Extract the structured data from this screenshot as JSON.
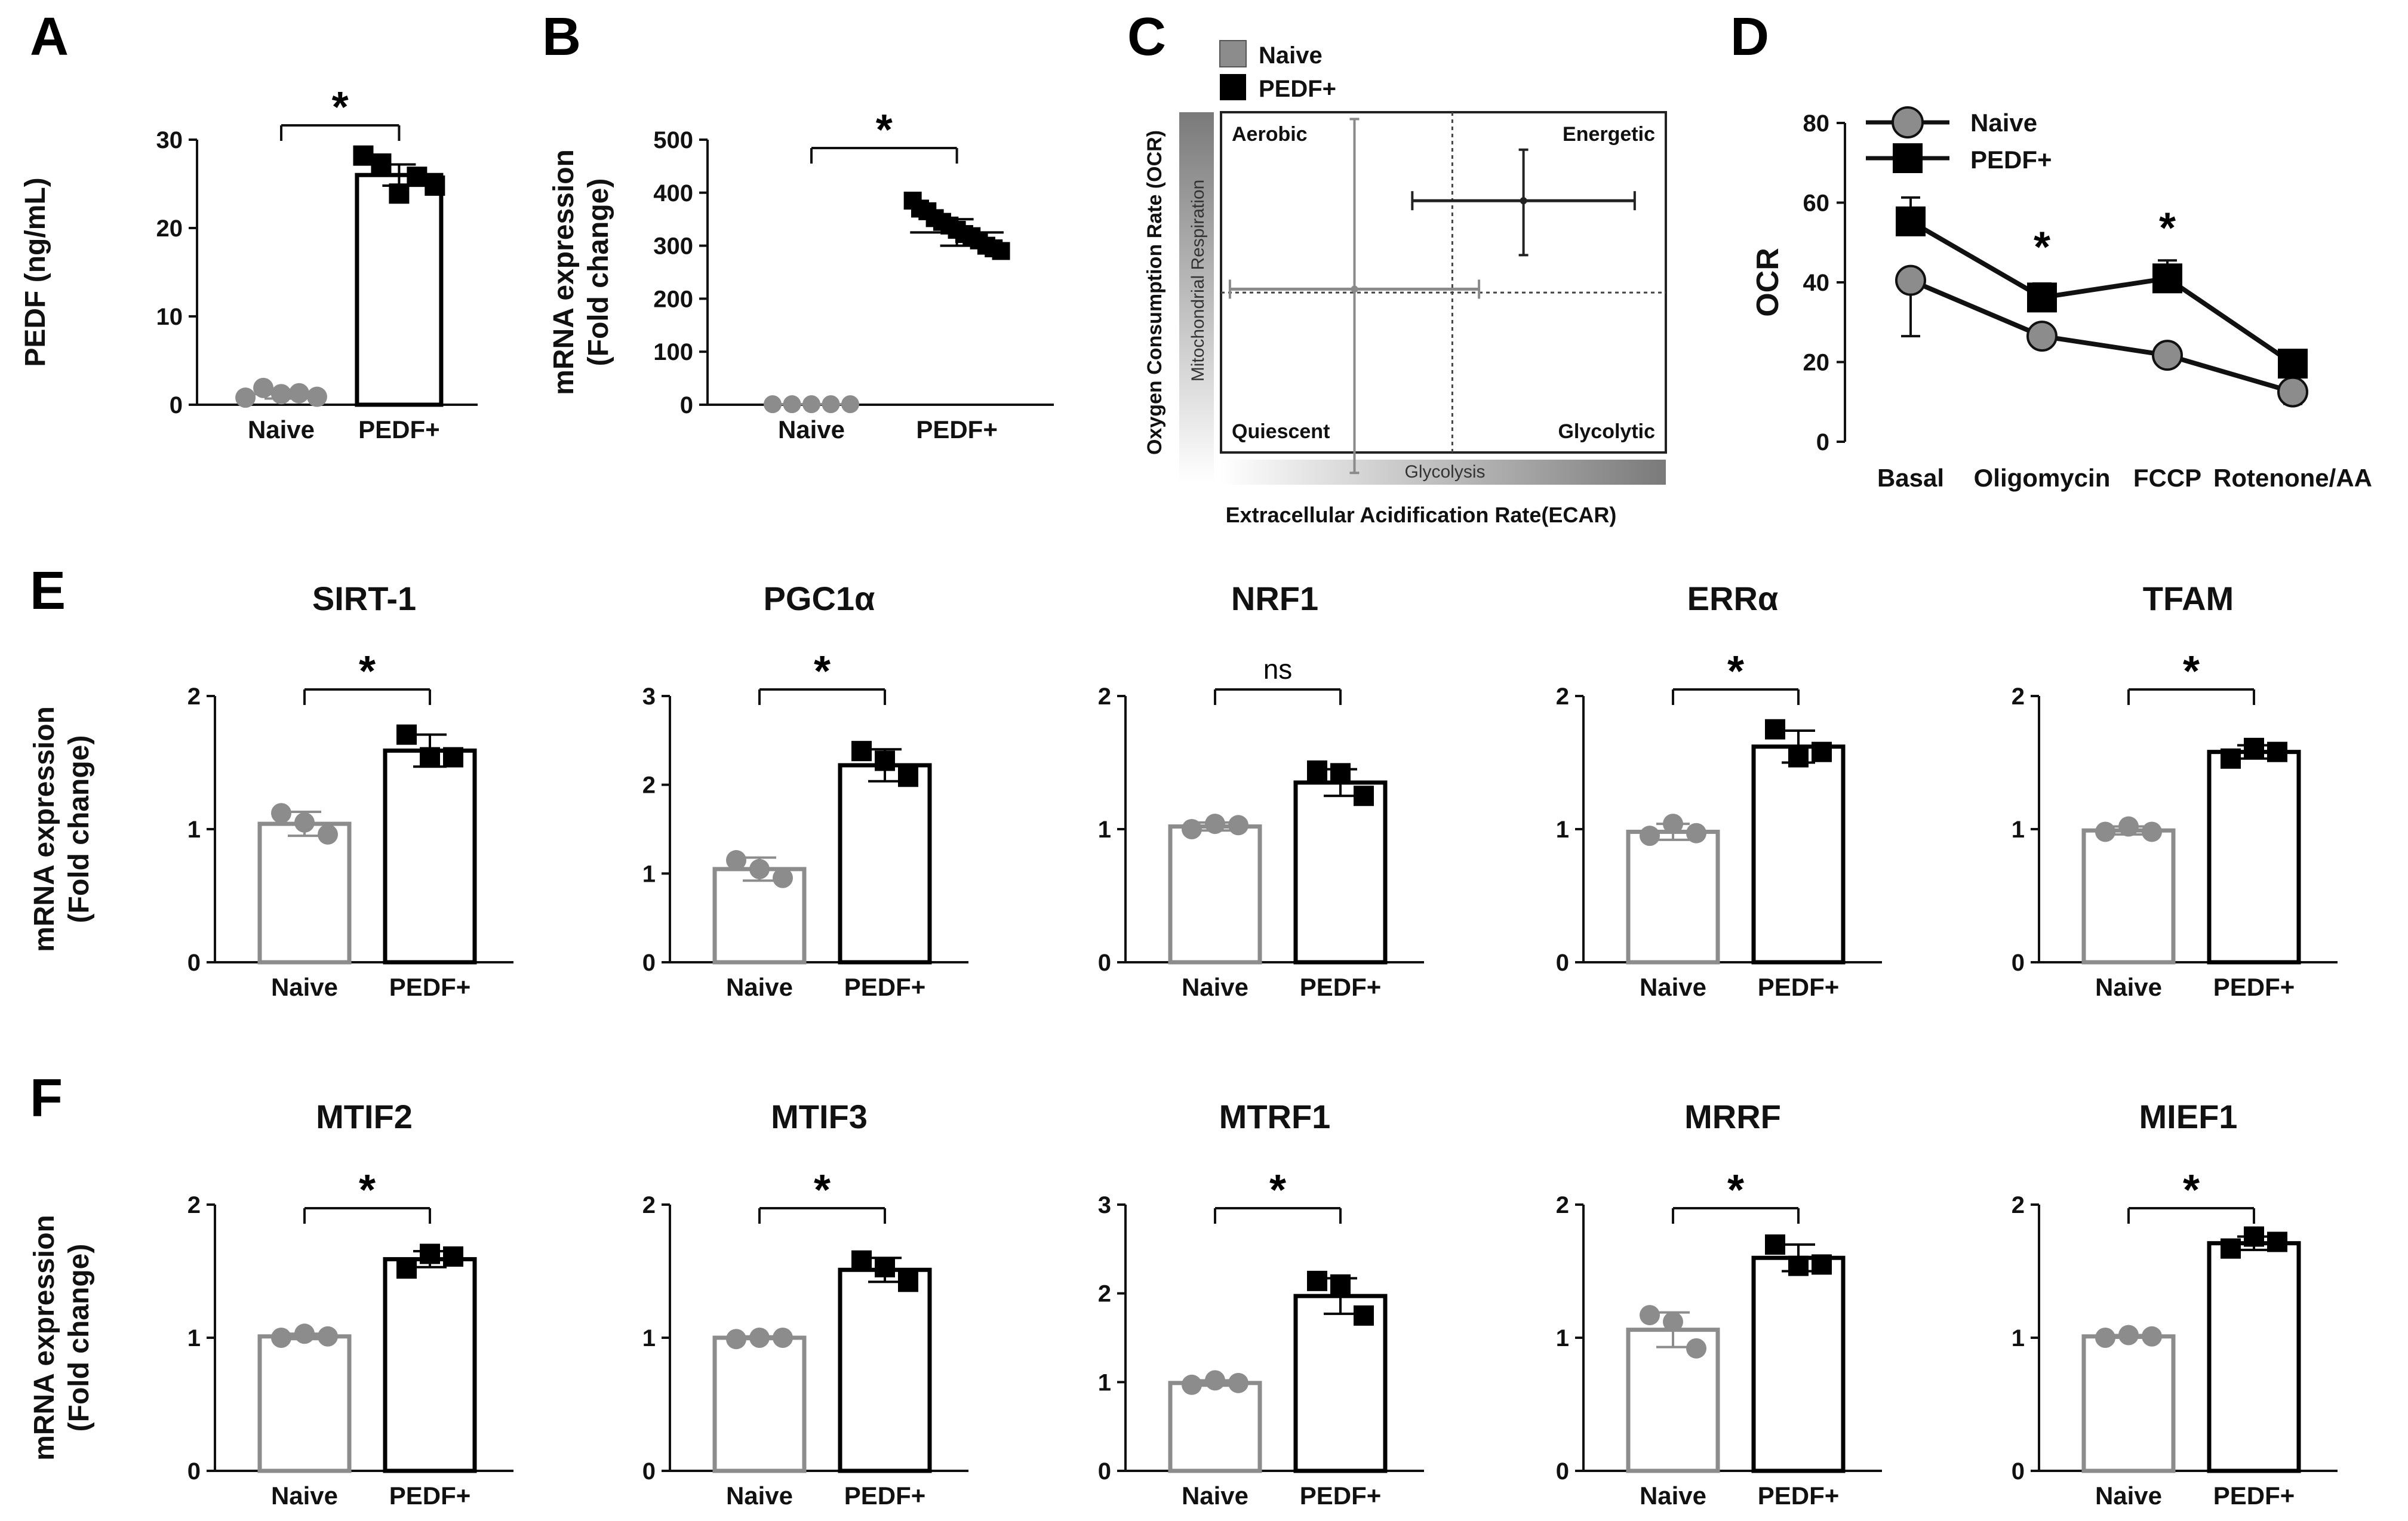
{
  "figure": {
    "colors": {
      "naive": "#8c8c8c",
      "pedf": "#000000",
      "axis": "#111111"
    }
  },
  "chart_data": [
    {
      "id": "A",
      "panel_label": "A",
      "type": "bar",
      "title": "",
      "ylabel": "PEDF (ng/mL)",
      "ylim": [
        0,
        30
      ],
      "yticks": [
        0,
        10,
        20,
        30
      ],
      "categories": [
        "Naive",
        "PEDF+"
      ],
      "series": [
        {
          "name": "Naive",
          "value": 1.2,
          "sd": 0.5,
          "points": [
            0.8,
            1.9,
            1.2,
            1.3,
            0.9
          ],
          "bar_visible": false
        },
        {
          "name": "PEDF+",
          "value": 26,
          "sd": 1.2,
          "points": [
            28.2,
            27.3,
            23.9,
            25.8,
            24.8
          ],
          "bar_visible": true
        }
      ],
      "significance": "*"
    },
    {
      "id": "B",
      "panel_label": "B",
      "type": "scatter",
      "title": "",
      "ylabel": "mRNA expression (Fold change)",
      "ylabel_lines": [
        "mRNA expression",
        "(Fold change)"
      ],
      "ylim": [
        0,
        500
      ],
      "yticks": [
        0,
        100,
        200,
        300,
        400,
        500
      ],
      "categories": [
        "Naive",
        "PEDF+"
      ],
      "series": [
        {
          "name": "Naive",
          "value": 1,
          "sd": 0,
          "points": [
            1,
            1,
            1,
            1,
            1
          ],
          "bar_visible": false
        },
        {
          "name": "PEDF+",
          "value": 325,
          "sd": 25,
          "points": [
            385,
            370,
            365,
            352,
            345,
            338,
            330,
            322,
            318,
            310,
            300,
            295,
            290
          ],
          "bar_visible": false
        }
      ],
      "significance": "*"
    },
    {
      "id": "C",
      "panel_label": "C",
      "type": "scatter",
      "title": "",
      "xlabel": "Extracellular Acidification Rate(ECAR)",
      "ylabel": "Oxygen Consumption Rate (OCR)",
      "x_gradient_label": "Glycolysis",
      "y_gradient_label": "Mitochondrial Respiration",
      "quadrants": [
        "Aerobic",
        "Energetic",
        "Quiescent",
        "Glycolytic"
      ],
      "legend": [
        "Naive",
        "PEDF+"
      ],
      "series": [
        {
          "name": "Naive",
          "x": 0.3,
          "y": 0.48,
          "x_err": 0.28,
          "y_err_up": 0.5,
          "y_err_down": 0.54
        },
        {
          "name": "PEDF+",
          "x": 0.68,
          "y": 0.74,
          "x_err": 0.25,
          "y_err_up": 0.15,
          "y_err_down": 0.16
        }
      ]
    },
    {
      "id": "D",
      "panel_label": "D",
      "type": "line",
      "title": "",
      "ylabel": "OCR",
      "ylim": [
        0,
        80
      ],
      "yticks": [
        0,
        20,
        40,
        60,
        80
      ],
      "categories": [
        "Basal",
        "Oligomycin",
        "FCCP",
        "Rotenone/AA"
      ],
      "legend": [
        "Naive",
        "PEDF+"
      ],
      "series": [
        {
          "name": "Naive",
          "values": [
            40.5,
            26.5,
            21.7,
            12.5
          ],
          "errors": [
            14,
            1,
            0.8,
            3
          ]
        },
        {
          "name": "PEDF+",
          "values": [
            55.3,
            36.2,
            41,
            19.6
          ],
          "errors": [
            6,
            3.5,
            4.5,
            1.5
          ]
        }
      ],
      "significance_markers": [
        "",
        "*",
        "*",
        ""
      ]
    },
    {
      "id": "E1",
      "panel_label": "E",
      "type": "bar",
      "title": "SIRT-1",
      "ylabel": "mRNA expression (Fold change)",
      "ylabel_lines": [
        "mRNA expression",
        "(Fold change)"
      ],
      "ylim": [
        0,
        2
      ],
      "yticks": [
        0,
        1,
        2
      ],
      "categories": [
        "Naive",
        "PEDF+"
      ],
      "series": [
        {
          "name": "Naive",
          "value": 1.04,
          "sd": 0.09,
          "points": [
            1.12,
            1.05,
            0.96
          ],
          "bar_visible": true
        },
        {
          "name": "PEDF+",
          "value": 1.59,
          "sd": 0.12,
          "points": [
            1.71,
            1.54,
            1.54
          ],
          "bar_visible": true
        }
      ],
      "significance": "*"
    },
    {
      "id": "E2",
      "panel_label": "",
      "type": "bar",
      "title": "PGC1α",
      "ylabel": "",
      "ylim": [
        0,
        3
      ],
      "yticks": [
        0,
        1,
        2,
        3
      ],
      "categories": [
        "Naive",
        "PEDF+"
      ],
      "series": [
        {
          "name": "Naive",
          "value": 1.05,
          "sd": 0.13,
          "points": [
            1.15,
            1.05,
            0.95
          ],
          "bar_visible": true
        },
        {
          "name": "PEDF+",
          "value": 2.22,
          "sd": 0.18,
          "points": [
            2.38,
            2.27,
            2.09
          ],
          "bar_visible": true
        }
      ],
      "significance": "*"
    },
    {
      "id": "E3",
      "panel_label": "",
      "type": "bar",
      "title": "NRF1",
      "ylabel": "",
      "ylim": [
        0,
        2
      ],
      "yticks": [
        0,
        1,
        2
      ],
      "categories": [
        "Naive",
        "PEDF+"
      ],
      "series": [
        {
          "name": "Naive",
          "value": 1.02,
          "sd": 0.03,
          "points": [
            1.0,
            1.04,
            1.03
          ],
          "bar_visible": true
        },
        {
          "name": "PEDF+",
          "value": 1.35,
          "sd": 0.1,
          "points": [
            1.44,
            1.42,
            1.25
          ],
          "bar_visible": true
        }
      ],
      "significance": "ns"
    },
    {
      "id": "E4",
      "panel_label": "",
      "type": "bar",
      "title": "ERRα",
      "ylabel": "",
      "ylim": [
        0,
        2
      ],
      "yticks": [
        0,
        1,
        2
      ],
      "categories": [
        "Naive",
        "PEDF+"
      ],
      "series": [
        {
          "name": "Naive",
          "value": 0.98,
          "sd": 0.06,
          "points": [
            0.95,
            1.04,
            0.97
          ],
          "bar_visible": true
        },
        {
          "name": "PEDF+",
          "value": 1.62,
          "sd": 0.12,
          "points": [
            1.75,
            1.54,
            1.58
          ],
          "bar_visible": true
        }
      ],
      "significance": "*"
    },
    {
      "id": "E5",
      "panel_label": "",
      "type": "bar",
      "title": "TFAM",
      "ylabel": "",
      "ylim": [
        0,
        2
      ],
      "yticks": [
        0,
        1,
        2
      ],
      "categories": [
        "Naive",
        "PEDF+"
      ],
      "series": [
        {
          "name": "Naive",
          "value": 0.99,
          "sd": 0.03,
          "points": [
            0.98,
            1.02,
            0.98
          ],
          "bar_visible": true
        },
        {
          "name": "PEDF+",
          "value": 1.58,
          "sd": 0.05,
          "points": [
            1.53,
            1.61,
            1.58
          ],
          "bar_visible": true
        }
      ],
      "significance": "*"
    },
    {
      "id": "F1",
      "panel_label": "F",
      "type": "bar",
      "title": "MTIF2",
      "ylabel": "mRNA expression (Fold change)",
      "ylabel_lines": [
        "mRNA expression",
        "(Fold change)"
      ],
      "ylim": [
        0,
        2
      ],
      "yticks": [
        0,
        1,
        2
      ],
      "categories": [
        "Naive",
        "PEDF+"
      ],
      "series": [
        {
          "name": "Naive",
          "value": 1.01,
          "sd": 0.02,
          "points": [
            1.0,
            1.03,
            1.01
          ],
          "bar_visible": true
        },
        {
          "name": "PEDF+",
          "value": 1.59,
          "sd": 0.06,
          "points": [
            1.52,
            1.63,
            1.61
          ],
          "bar_visible": true
        }
      ],
      "significance": "*"
    },
    {
      "id": "F2",
      "panel_label": "",
      "type": "bar",
      "title": "MTIF3",
      "ylabel": "",
      "ylim": [
        0,
        2
      ],
      "yticks": [
        0,
        1,
        2
      ],
      "categories": [
        "Naive",
        "PEDF+"
      ],
      "series": [
        {
          "name": "Naive",
          "value": 1.0,
          "sd": 0.01,
          "points": [
            0.99,
            1.0,
            1.0
          ],
          "bar_visible": true
        },
        {
          "name": "PEDF+",
          "value": 1.51,
          "sd": 0.09,
          "points": [
            1.58,
            1.53,
            1.42
          ],
          "bar_visible": true
        }
      ],
      "significance": "*"
    },
    {
      "id": "F3",
      "panel_label": "",
      "type": "bar",
      "title": "MTRF1",
      "ylabel": "",
      "ylim": [
        0,
        3
      ],
      "yticks": [
        0,
        1,
        2,
        3
      ],
      "categories": [
        "Naive",
        "PEDF+"
      ],
      "series": [
        {
          "name": "Naive",
          "value": 0.99,
          "sd": 0.03,
          "points": [
            0.97,
            1.02,
            0.99
          ],
          "bar_visible": true
        },
        {
          "name": "PEDF+",
          "value": 1.97,
          "sd": 0.2,
          "points": [
            2.14,
            2.1,
            1.75
          ],
          "bar_visible": true
        }
      ],
      "significance": "*"
    },
    {
      "id": "F4",
      "panel_label": "",
      "type": "bar",
      "title": "MRRF",
      "ylabel": "",
      "ylim": [
        0,
        2
      ],
      "yticks": [
        0,
        1,
        2
      ],
      "categories": [
        "Naive",
        "PEDF+"
      ],
      "series": [
        {
          "name": "Naive",
          "value": 1.06,
          "sd": 0.13,
          "points": [
            1.17,
            1.12,
            0.92
          ],
          "bar_visible": true
        },
        {
          "name": "PEDF+",
          "value": 1.6,
          "sd": 0.1,
          "points": [
            1.7,
            1.54,
            1.55
          ],
          "bar_visible": true
        }
      ],
      "significance": "*"
    },
    {
      "id": "F5",
      "panel_label": "",
      "type": "bar",
      "title": "MIEF1",
      "ylabel": "",
      "ylim": [
        0,
        2
      ],
      "yticks": [
        0,
        1,
        2
      ],
      "categories": [
        "Naive",
        "PEDF+"
      ],
      "series": [
        {
          "name": "Naive",
          "value": 1.01,
          "sd": 0.01,
          "points": [
            1.0,
            1.02,
            1.01
          ],
          "bar_visible": true
        },
        {
          "name": "PEDF+",
          "value": 1.71,
          "sd": 0.05,
          "points": [
            1.67,
            1.76,
            1.72
          ],
          "bar_visible": true
        }
      ],
      "significance": "*"
    }
  ]
}
